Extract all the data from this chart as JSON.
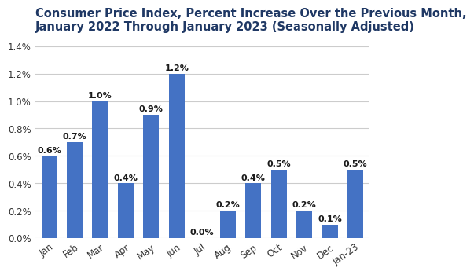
{
  "categories": [
    "Jan",
    "Feb",
    "Mar",
    "Apr",
    "May",
    "Jun",
    "Jul",
    "Aug",
    "Sep",
    "Oct",
    "Nov",
    "Dec",
    "Jan-23"
  ],
  "values": [
    0.6,
    0.7,
    1.0,
    0.4,
    0.9,
    1.2,
    0.0,
    0.2,
    0.4,
    0.5,
    0.2,
    0.1,
    0.5
  ],
  "bar_color": "#4472C4",
  "title_line1": "Consumer Price Index, Percent Increase Over the Previous Month,",
  "title_line2": "January 2022 Through January 2023 (Seasonally Adjusted)",
  "title_color": "#1F3864",
  "ylim": [
    0,
    1.45
  ],
  "yticks": [
    0.0,
    0.2,
    0.4,
    0.6,
    0.8,
    1.0,
    1.2,
    1.4
  ],
  "grid_color": "#cccccc",
  "background_color": "#ffffff",
  "title_fontsize": 10.5,
  "tick_fontsize": 8.5,
  "bar_label_fontsize": 8,
  "label_color": "#333333",
  "bar_label_color": "#1a1a1a"
}
